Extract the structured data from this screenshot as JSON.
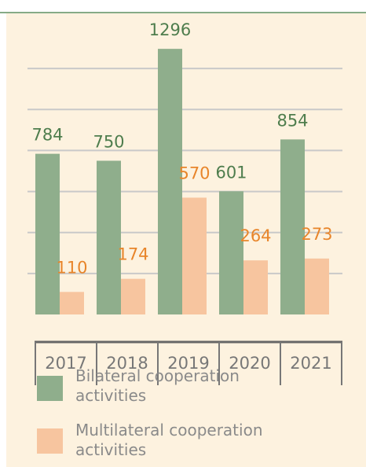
{
  "chart_data": {
    "type": "bar",
    "categories": [
      "2017",
      "2018",
      "2019",
      "2020",
      "2021"
    ],
    "series": [
      {
        "name": "Bilateral cooperation activities",
        "color": "#8fae8c",
        "label_color": "#4e7d4d",
        "values": [
          784,
          750,
          1296,
          601,
          854
        ]
      },
      {
        "name": "Multilateral cooperation activities",
        "color": "#f7c59f",
        "label_color": "#e8852a",
        "values": [
          110,
          174,
          570,
          264,
          273
        ]
      }
    ],
    "ylim": [
      0,
      1400
    ],
    "yticks": [
      200,
      400,
      600,
      800,
      1000,
      1200
    ],
    "grid": true
  }
}
